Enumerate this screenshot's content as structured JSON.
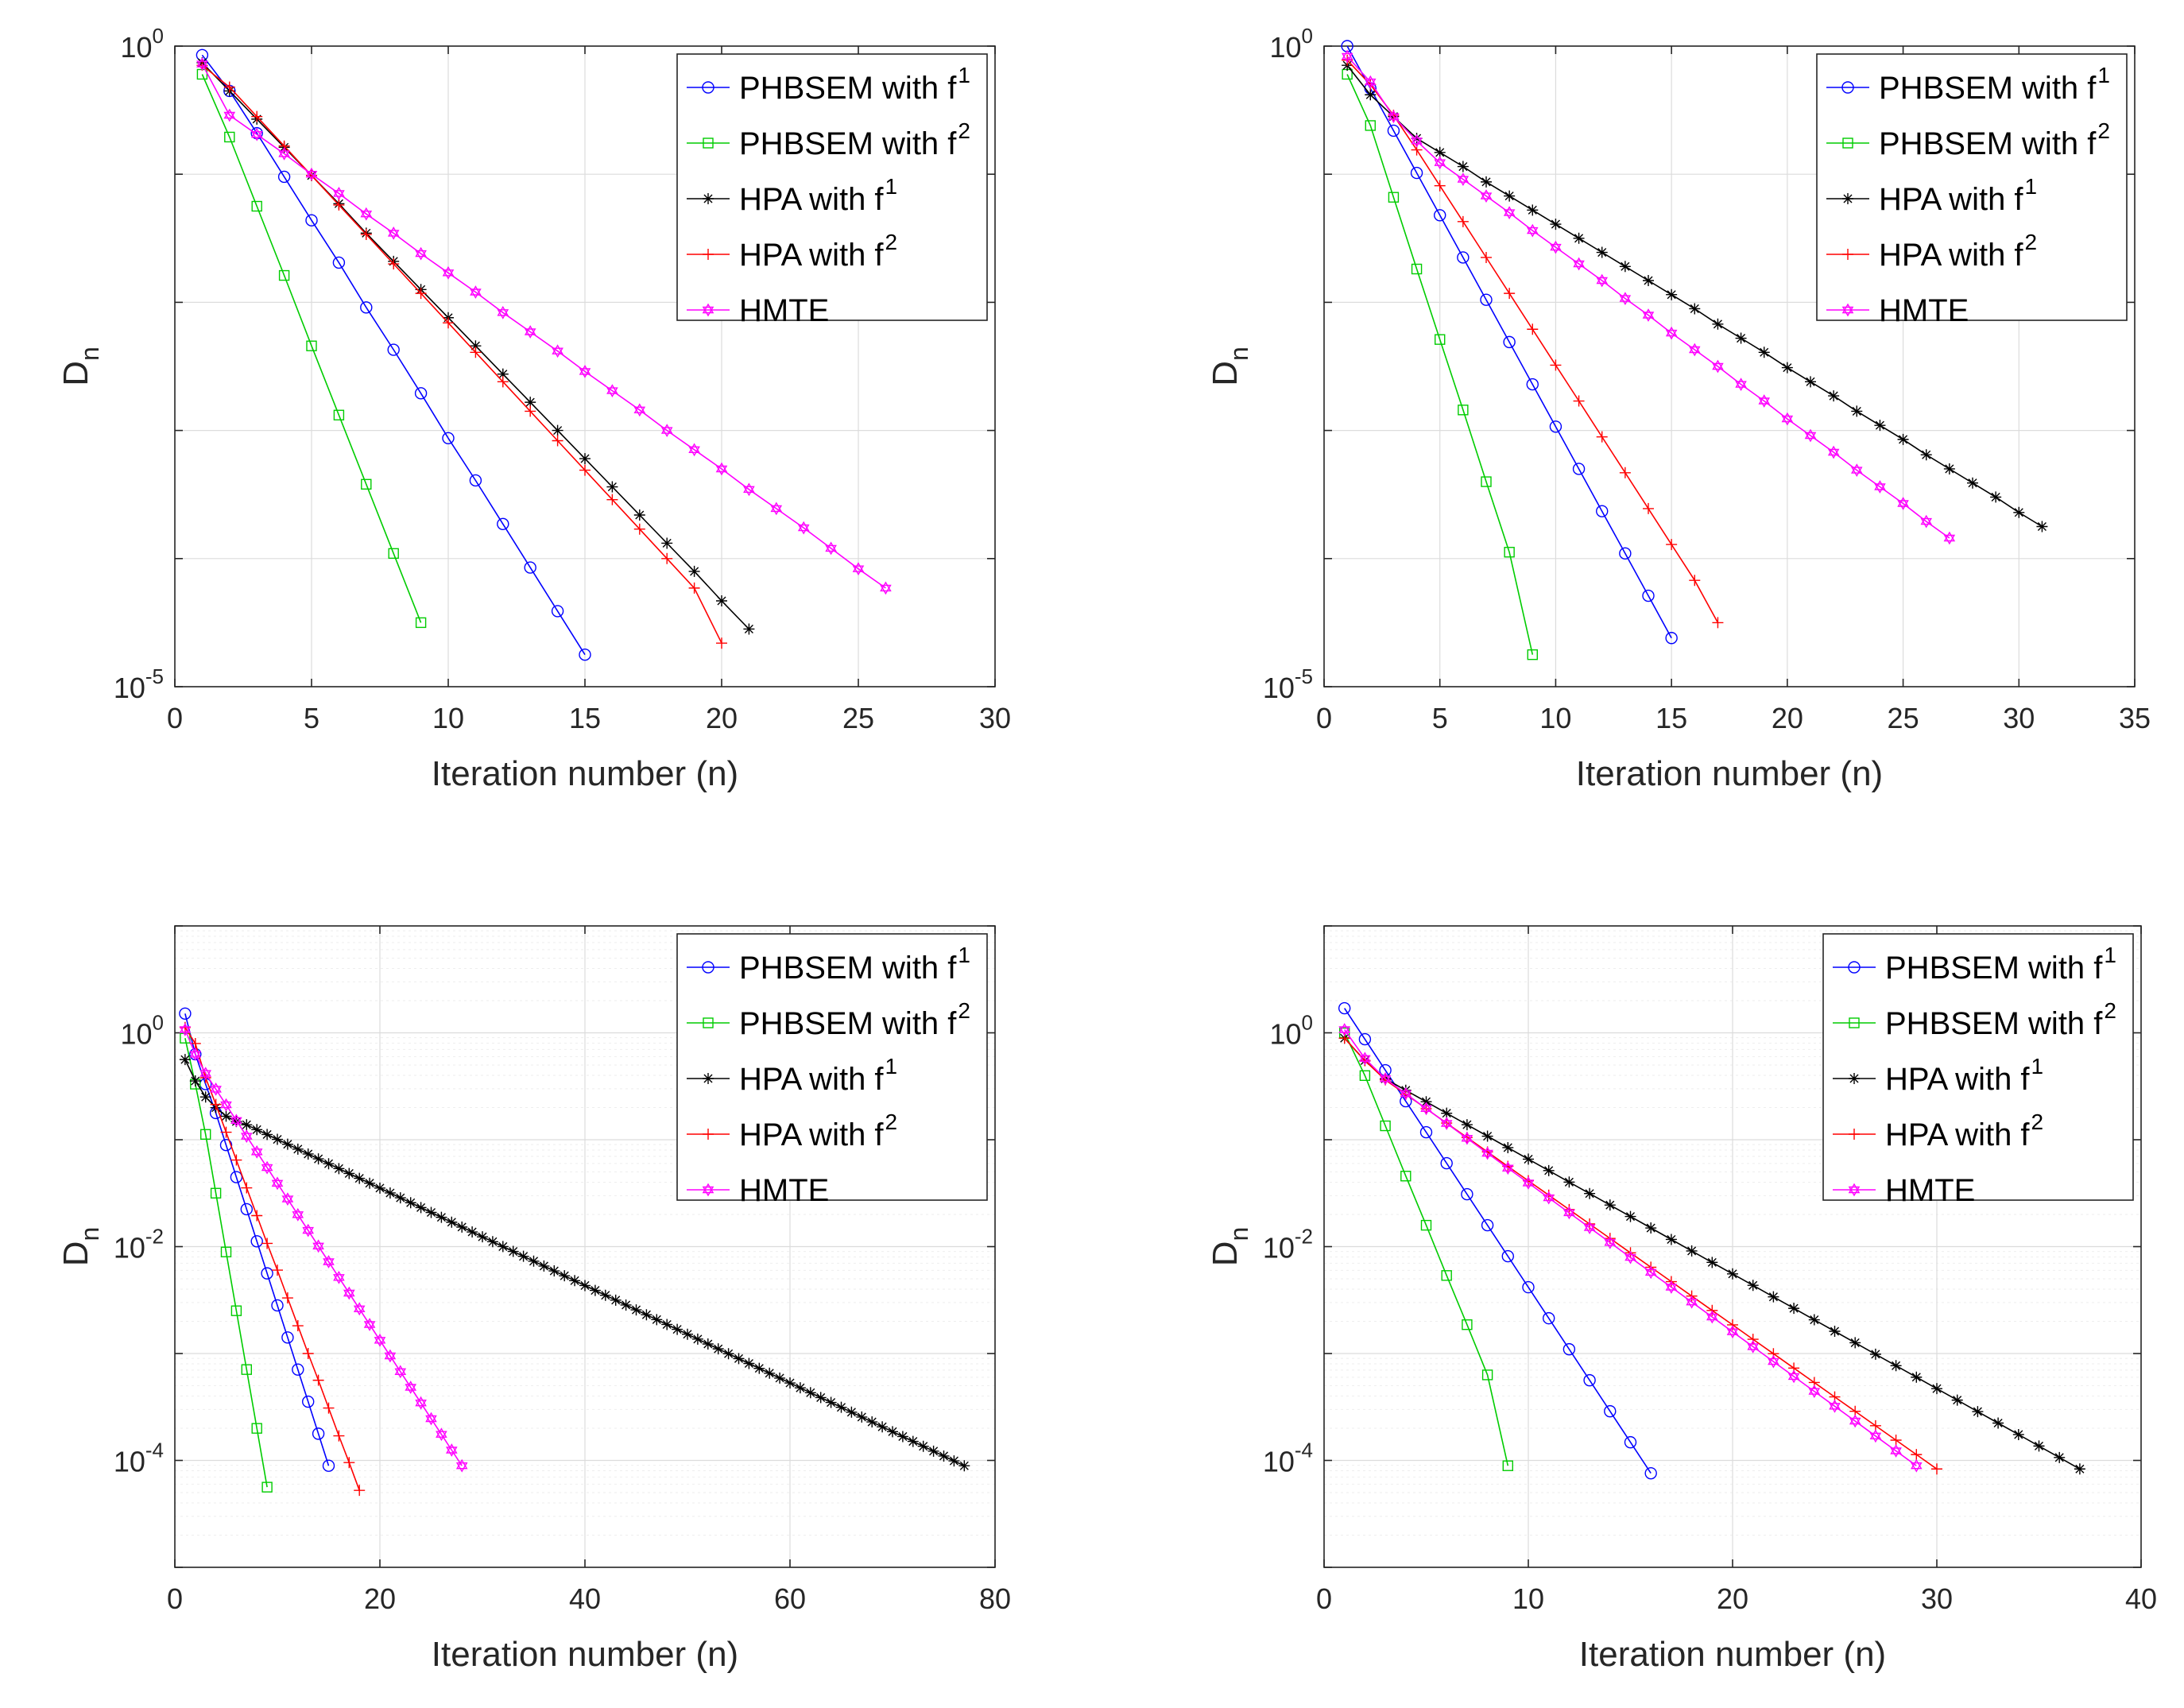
{
  "chart_data": [
    {
      "type": "line",
      "yscale": "log",
      "xlabel": "Iteration number (n)",
      "ylabel": "D",
      "ylabel_sub": "n",
      "xlim": [
        0,
        30
      ],
      "xticks": [
        0,
        5,
        10,
        15,
        20,
        25,
        30
      ],
      "ylim_exp": [
        -5,
        0
      ],
      "yticks": [
        {
          "exp": 0,
          "label": "10",
          "sup": "0"
        },
        {
          "exp": -5,
          "label": "10",
          "sup": "-5"
        }
      ],
      "grid": "major",
      "legend_placement": "top-right",
      "series": [
        {
          "name": "PHBSEM with f",
          "sup": "1",
          "color": "#0000ff",
          "marker": "circle",
          "x_start": 1,
          "y_log": [
            -0.07,
            -0.35,
            -0.68,
            -1.02,
            -1.36,
            -1.69,
            -2.04,
            -2.37,
            -2.71,
            -3.06,
            -3.39,
            -3.73,
            -4.07,
            -4.41,
            -4.75
          ]
        },
        {
          "name": "PHBSEM with f",
          "sup": "2",
          "color": "#00cc00",
          "marker": "square",
          "x_start": 1,
          "y_log": [
            -0.22,
            -0.71,
            -1.25,
            -1.79,
            -2.34,
            -2.88,
            -3.42,
            -3.96,
            -4.5
          ]
        },
        {
          "name": "HPA with f",
          "sup": "1",
          "color": "#000000",
          "marker": "star",
          "x_start": 1,
          "y_log": [
            -0.13,
            -0.35,
            -0.57,
            -0.79,
            -1.01,
            -1.23,
            -1.46,
            -1.68,
            -1.9,
            -2.12,
            -2.34,
            -2.56,
            -2.78,
            -3.0,
            -3.22,
            -3.44,
            -3.66,
            -3.88,
            -4.1,
            -4.33,
            -4.55
          ]
        },
        {
          "name": "HPA with f",
          "sup": "2",
          "color": "#ff0000",
          "marker": "plus",
          "x_start": 1,
          "y_log": [
            -0.15,
            -0.32,
            -0.55,
            -0.78,
            -1.01,
            -1.24,
            -1.47,
            -1.7,
            -1.93,
            -2.16,
            -2.39,
            -2.62,
            -2.85,
            -3.08,
            -3.31,
            -3.54,
            -3.77,
            -4.0,
            -4.23,
            -4.66
          ]
        },
        {
          "name": "HMTE",
          "sup": "",
          "color": "#ff00ff",
          "marker": "hexagram",
          "x_start": 1,
          "y_log": [
            -0.14,
            -0.54,
            -0.69,
            -0.84,
            -1.0,
            -1.15,
            -1.31,
            -1.46,
            -1.62,
            -1.77,
            -1.92,
            -2.08,
            -2.23,
            -2.38,
            -2.54,
            -2.69,
            -2.84,
            -3.0,
            -3.15,
            -3.3,
            -3.46,
            -3.61,
            -3.76,
            -3.92,
            -4.08,
            -4.23
          ]
        }
      ]
    },
    {
      "type": "line",
      "yscale": "log",
      "xlabel": "Iteration number (n)",
      "ylabel": "D",
      "ylabel_sub": "n",
      "xlim": [
        0,
        35
      ],
      "xticks": [
        0,
        5,
        10,
        15,
        20,
        25,
        30,
        35
      ],
      "ylim_exp": [
        -5,
        0
      ],
      "yticks": [
        {
          "exp": 0,
          "label": "10",
          "sup": "0"
        },
        {
          "exp": -5,
          "label": "10",
          "sup": "-5"
        }
      ],
      "grid": "major",
      "legend_placement": "top-right",
      "series": [
        {
          "name": "PHBSEM with f",
          "sup": "1",
          "color": "#0000ff",
          "marker": "circle",
          "x_start": 1,
          "y_log": [
            0.0,
            -0.33,
            -0.66,
            -0.99,
            -1.32,
            -1.65,
            -1.98,
            -2.31,
            -2.64,
            -2.97,
            -3.3,
            -3.63,
            -3.96,
            -4.29,
            -4.62
          ]
        },
        {
          "name": "PHBSEM with f",
          "sup": "2",
          "color": "#00cc00",
          "marker": "square",
          "x_start": 1,
          "y_log": [
            -0.22,
            -0.62,
            -1.18,
            -1.74,
            -2.29,
            -2.84,
            -3.4,
            -3.95,
            -4.75
          ]
        },
        {
          "name": "HPA with f",
          "sup": "1",
          "color": "#000000",
          "marker": "star",
          "x_start": 1,
          "y_log": [
            -0.15,
            -0.38,
            -0.55,
            -0.72,
            -0.83,
            -0.94,
            -1.06,
            -1.17,
            -1.28,
            -1.39,
            -1.5,
            -1.61,
            -1.72,
            -1.83,
            -1.94,
            -2.05,
            -2.17,
            -2.28,
            -2.39,
            -2.51,
            -2.62,
            -2.73,
            -2.85,
            -2.96,
            -3.07,
            -3.19,
            -3.3,
            -3.41,
            -3.52,
            -3.64,
            -3.75
          ]
        },
        {
          "name": "HPA with f",
          "sup": "2",
          "color": "#ff0000",
          "marker": "plus",
          "x_start": 1,
          "y_log": [
            -0.11,
            -0.3,
            -0.54,
            -0.81,
            -1.09,
            -1.37,
            -1.65,
            -1.93,
            -2.21,
            -2.49,
            -2.77,
            -3.05,
            -3.33,
            -3.61,
            -3.89,
            -4.17,
            -4.5
          ]
        },
        {
          "name": "HMTE",
          "sup": "",
          "color": "#ff00ff",
          "marker": "hexagram",
          "x_start": 1,
          "y_log": [
            -0.08,
            -0.28,
            -0.55,
            -0.74,
            -0.91,
            -1.04,
            -1.17,
            -1.3,
            -1.44,
            -1.57,
            -1.7,
            -1.83,
            -1.97,
            -2.1,
            -2.24,
            -2.37,
            -2.5,
            -2.64,
            -2.77,
            -2.91,
            -3.04,
            -3.17,
            -3.31,
            -3.44,
            -3.57,
            -3.71,
            -3.84
          ]
        }
      ]
    },
    {
      "type": "line",
      "yscale": "log",
      "xlabel": "Iteration number (n)",
      "ylabel": "D",
      "ylabel_sub": "n",
      "xlim": [
        0,
        80
      ],
      "xticks": [
        0,
        20,
        40,
        60,
        80
      ],
      "ylim_exp": [
        -5,
        1
      ],
      "yticks": [
        {
          "exp": 0,
          "label": "10",
          "sup": "0"
        },
        {
          "exp": -2,
          "label": "10",
          "sup": "-2"
        },
        {
          "exp": -4,
          "label": "10",
          "sup": "-4"
        }
      ],
      "grid": "major+minor",
      "legend_placement": "top-right",
      "series": [
        {
          "name": "PHBSEM with f",
          "sup": "1",
          "color": "#0000ff",
          "marker": "circle",
          "x_start": 1,
          "y_log": [
            0.18,
            -0.2,
            -0.48,
            -0.75,
            -1.05,
            -1.35,
            -1.65,
            -1.95,
            -2.25,
            -2.55,
            -2.85,
            -3.15,
            -3.45,
            -3.75,
            -4.05
          ]
        },
        {
          "name": "PHBSEM with f",
          "sup": "2",
          "color": "#00cc00",
          "marker": "square",
          "x_start": 1,
          "y_log": [
            -0.05,
            -0.48,
            -0.95,
            -1.5,
            -2.05,
            -2.6,
            -3.15,
            -3.7,
            -4.25
          ]
        },
        {
          "name": "HPA with f",
          "sup": "1",
          "color": "#000000",
          "marker": "star",
          "x_start": 1,
          "x_end": 77,
          "log_end": -4.05,
          "knots": [
            [
              1,
              -0.25
            ],
            [
              2,
              -0.45
            ],
            [
              3,
              -0.6
            ],
            [
              4,
              -0.7
            ],
            [
              5,
              -0.78
            ],
            [
              6,
              -0.83
            ],
            [
              7,
              -0.86
            ]
          ]
        },
        {
          "name": "HPA with f",
          "sup": "2",
          "color": "#ff0000",
          "marker": "plus",
          "x_start": 1,
          "y_log": [
            0.05,
            -0.1,
            -0.42,
            -0.67,
            -0.93,
            -1.19,
            -1.45,
            -1.71,
            -1.97,
            -2.22,
            -2.48,
            -2.74,
            -3.0,
            -3.25,
            -3.51,
            -3.77,
            -4.02,
            -4.28
          ]
        },
        {
          "name": "HMTE",
          "sup": "",
          "color": "#ff00ff",
          "marker": "hexagram",
          "x_start": 1,
          "x_end": 28,
          "log_start": 0.03,
          "log_end": -4.05,
          "knots": [
            [
              2,
              -0.2
            ],
            [
              3,
              -0.38
            ]
          ]
        }
      ]
    },
    {
      "type": "line",
      "yscale": "log",
      "xlabel": "Iteration number (n)",
      "ylabel": "D",
      "ylabel_sub": "n",
      "xlim": [
        0,
        40
      ],
      "xticks": [
        0,
        10,
        20,
        30,
        40
      ],
      "ylim_exp": [
        -5,
        1
      ],
      "yticks": [
        {
          "exp": 0,
          "label": "10",
          "sup": "0"
        },
        {
          "exp": -2,
          "label": "10",
          "sup": "-2"
        },
        {
          "exp": -4,
          "label": "10",
          "sup": "-4"
        }
      ],
      "grid": "major+minor",
      "legend_placement": "top-right",
      "series": [
        {
          "name": "PHBSEM with f",
          "sup": "1",
          "color": "#0000ff",
          "marker": "circle",
          "x_start": 1,
          "y_log": [
            0.23,
            -0.06,
            -0.35,
            -0.64,
            -0.93,
            -1.22,
            -1.51,
            -1.8,
            -2.09,
            -2.38,
            -2.67,
            -2.96,
            -3.25,
            -3.54,
            -3.83,
            -4.12
          ]
        },
        {
          "name": "PHBSEM with f",
          "sup": "2",
          "color": "#00cc00",
          "marker": "square",
          "x_start": 1,
          "y_log": [
            0.0,
            -0.4,
            -0.87,
            -1.34,
            -1.8,
            -2.27,
            -2.73,
            -3.2,
            -4.05
          ]
        },
        {
          "name": "HPA with f",
          "sup": "1",
          "color": "#000000",
          "marker": "star",
          "x_start": 1,
          "x_end": 37,
          "log_start": -0.05,
          "log_end": -4.08,
          "knots": [
            [
              2,
              -0.26
            ],
            [
              3,
              -0.43
            ]
          ]
        },
        {
          "name": "HPA with f",
          "sup": "2",
          "color": "#ff0000",
          "marker": "plus",
          "x_start": 1,
          "x_end": 30,
          "log_start": -0.05,
          "log_end": -4.08,
          "knots": [
            [
              2,
              -0.26
            ],
            [
              3,
              -0.44
            ]
          ]
        },
        {
          "name": "HMTE",
          "sup": "",
          "color": "#ff00ff",
          "marker": "hexagram",
          "x_start": 1,
          "x_end": 29,
          "log_start": 0.03,
          "log_end": -4.05,
          "knots": [
            [
              2,
              -0.24
            ],
            [
              3,
              -0.43
            ]
          ]
        }
      ]
    }
  ]
}
